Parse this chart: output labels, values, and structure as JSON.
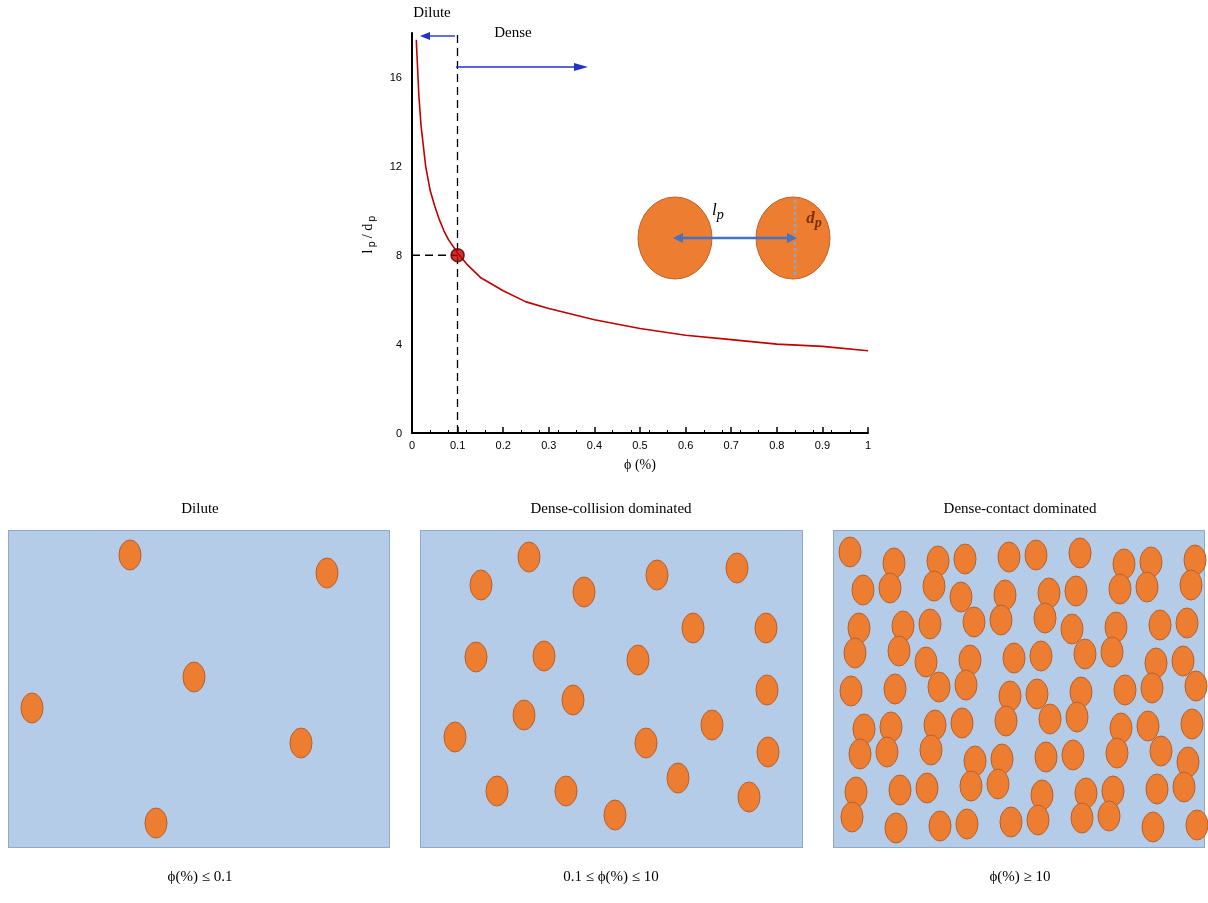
{
  "chart_data": {
    "type": "line",
    "xlabel": "ϕ (%)",
    "ylabel": "l$_{p}$/ d$_{p}$",
    "xlim": [
      0,
      1
    ],
    "ylim": [
      0,
      18
    ],
    "xticks": [
      0,
      0.1,
      0.2,
      0.3,
      0.4,
      0.5,
      0.6,
      0.7,
      0.8,
      0.9,
      1
    ],
    "yticks": [
      0,
      4,
      8,
      12,
      16
    ],
    "series": [
      {
        "color": "#c00000",
        "marker": "none",
        "line_style": "solid",
        "x": [
          0.0095,
          0.01,
          0.015,
          0.02,
          0.03,
          0.04,
          0.05,
          0.06,
          0.07,
          0.08,
          0.1,
          0.12,
          0.15,
          0.2,
          0.25,
          0.3,
          0.4,
          0.5,
          0.6,
          0.7,
          0.8,
          0.9,
          1
        ],
        "values": [
          17.7,
          17.4,
          15.2,
          13.8,
          12.0,
          10.9,
          10.2,
          9.6,
          9.1,
          8.7,
          8.1,
          7.6,
          7.0,
          6.4,
          5.9,
          5.6,
          5.1,
          4.7,
          4.4,
          4.2,
          4.0,
          3.9,
          3.7
        ]
      },
      {
        "type": "line",
        "color": "#000000",
        "marker": "none",
        "line_style": "dashed",
        "x": [
          0,
          0.1
        ],
        "values": [
          8,
          8
        ]
      },
      {
        "type": "scatter",
        "color": "#c00000",
        "marker": "circle",
        "x": [
          0.1
        ],
        "values": [
          8
        ]
      }
    ],
    "ref_lines": [
      {
        "axis": "x",
        "value": 0.1,
        "color": "#000000",
        "line_style": "dashed"
      }
    ],
    "annotations": [
      "Dilute",
      "Dense",
      "l$_{p}$",
      "d$_{p}$",
      "Dilute",
      "Dense-collision  dominated",
      "Dense-contact  dominated",
      "ϕ(%) ≤ 0.1",
      "0.1 ≤ ϕ(%) ≤ 10",
      "ϕ(%) ≥ 10"
    ]
  }
}
